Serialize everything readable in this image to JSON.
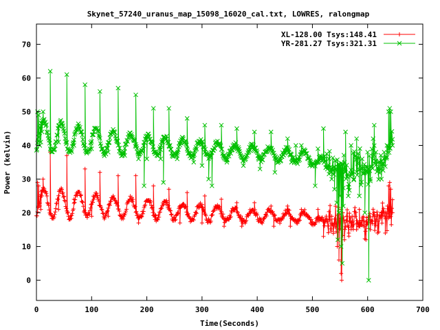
{
  "chart_data": {
    "type": "scatter",
    "title": "Skynet_57240_uranus_map_15098_16020_cal.txt, LOWRES, ralongmap",
    "xlabel": "Time(Seconds)",
    "ylabel": "Power (kelvin)",
    "xlim": [
      0,
      700
    ],
    "ylim": [
      -6,
      76
    ],
    "xticks": [
      0,
      100,
      200,
      300,
      400,
      500,
      600,
      700
    ],
    "yticks": [
      0,
      10,
      20,
      30,
      40,
      50,
      60,
      70
    ],
    "legend_position": "top-right",
    "series": [
      {
        "name": "XL-128.00 Tsys:148.41",
        "color": "#ff0000",
        "marker": "plus",
        "baseline": [
          [
            0,
            21
          ],
          [
            100,
            21
          ],
          [
            200,
            20
          ],
          [
            300,
            19
          ],
          [
            400,
            18.5
          ],
          [
            500,
            18
          ],
          [
            520,
            17
          ],
          [
            560,
            16.5
          ],
          [
            600,
            17.5
          ],
          [
            640,
            20
          ],
          [
            645,
            20
          ]
        ],
        "amplitude": [
          [
            0,
            9
          ],
          [
            60,
            8
          ],
          [
            120,
            6
          ],
          [
            200,
            5.5
          ],
          [
            300,
            4.5
          ],
          [
            400,
            3.5
          ],
          [
            500,
            3
          ],
          [
            520,
            1
          ],
          [
            640,
            1
          ]
        ],
        "period_s": 31.5,
        "points": [
          [
            2,
            29
          ],
          [
            4,
            28
          ],
          [
            6,
            22
          ],
          [
            8,
            21
          ],
          [
            10,
            25
          ],
          [
            12,
            30
          ],
          [
            25,
            38
          ],
          [
            40,
            21
          ],
          [
            55,
            37
          ],
          [
            68,
            24
          ],
          [
            88,
            33
          ],
          [
            100,
            19
          ],
          [
            115,
            32
          ],
          [
            130,
            19
          ],
          [
            148,
            31
          ],
          [
            158,
            19
          ],
          [
            180,
            31
          ],
          [
            185,
            17
          ],
          [
            212,
            28
          ],
          [
            215,
            18
          ],
          [
            240,
            27
          ],
          [
            260,
            17
          ],
          [
            273,
            26
          ],
          [
            300,
            17
          ],
          [
            305,
            25
          ],
          [
            335,
            24
          ],
          [
            340,
            16
          ],
          [
            363,
            23
          ],
          [
            372,
            16
          ],
          [
            395,
            23
          ],
          [
            425,
            22
          ],
          [
            430,
            16
          ],
          [
            455,
            22
          ],
          [
            460,
            16
          ],
          [
            480,
            21
          ],
          [
            497,
            17
          ],
          [
            510,
            21
          ],
          [
            520,
            13
          ],
          [
            535,
            19
          ],
          [
            545,
            10
          ],
          [
            548,
            6
          ],
          [
            552,
            2
          ],
          [
            553,
            0
          ],
          [
            555,
            20
          ],
          [
            558,
            12
          ],
          [
            562,
            19
          ],
          [
            566,
            14
          ],
          [
            572,
            19
          ],
          [
            580,
            15
          ],
          [
            585,
            21
          ],
          [
            592,
            19
          ],
          [
            597,
            12
          ],
          [
            605,
            15
          ],
          [
            612,
            20
          ],
          [
            618,
            14
          ],
          [
            625,
            20
          ],
          [
            632,
            14
          ],
          [
            638,
            28
          ],
          [
            640,
            29
          ],
          [
            642,
            27
          ],
          [
            645,
            20
          ]
        ]
      },
      {
        "name": "YR-281.27 Tsys:321.31",
        "color": "#00c000",
        "marker": "cross",
        "baseline": [
          [
            0,
            41
          ],
          [
            100,
            40
          ],
          [
            200,
            39
          ],
          [
            300,
            38
          ],
          [
            400,
            37
          ],
          [
            480,
            36
          ],
          [
            520,
            34
          ],
          [
            560,
            32
          ],
          [
            600,
            33
          ],
          [
            630,
            35
          ],
          [
            645,
            40
          ]
        ],
        "amplitude": [
          [
            0,
            10
          ],
          [
            80,
            8
          ],
          [
            160,
            6
          ],
          [
            260,
            5
          ],
          [
            360,
            4
          ],
          [
            480,
            3.5
          ],
          [
            520,
            3
          ],
          [
            640,
            3
          ]
        ],
        "period_s": 31.5,
        "points": [
          [
            2,
            50
          ],
          [
            4,
            49
          ],
          [
            6,
            40
          ],
          [
            8,
            41
          ],
          [
            10,
            44
          ],
          [
            12,
            50
          ],
          [
            25,
            62
          ],
          [
            40,
            41
          ],
          [
            55,
            61
          ],
          [
            68,
            40
          ],
          [
            88,
            58
          ],
          [
            100,
            39
          ],
          [
            115,
            56
          ],
          [
            130,
            38
          ],
          [
            148,
            57
          ],
          [
            160,
            37
          ],
          [
            180,
            55
          ],
          [
            185,
            36
          ],
          [
            195,
            28
          ],
          [
            200,
            36
          ],
          [
            212,
            51
          ],
          [
            225,
            36
          ],
          [
            230,
            29
          ],
          [
            240,
            51
          ],
          [
            255,
            36
          ],
          [
            273,
            48
          ],
          [
            285,
            35
          ],
          [
            300,
            34
          ],
          [
            305,
            46
          ],
          [
            312,
            30
          ],
          [
            318,
            28
          ],
          [
            335,
            46
          ],
          [
            345,
            35
          ],
          [
            363,
            45
          ],
          [
            375,
            34
          ],
          [
            395,
            44
          ],
          [
            405,
            33
          ],
          [
            425,
            44
          ],
          [
            432,
            32
          ],
          [
            455,
            42
          ],
          [
            462,
            35
          ],
          [
            470,
            40
          ],
          [
            480,
            40
          ],
          [
            495,
            34
          ],
          [
            505,
            28
          ],
          [
            510,
            39
          ],
          [
            520,
            45
          ],
          [
            530,
            36
          ],
          [
            535,
            30
          ],
          [
            540,
            27
          ],
          [
            544,
            23
          ],
          [
            546,
            12
          ],
          [
            548,
            20
          ],
          [
            550,
            25
          ],
          [
            552,
            10
          ],
          [
            554,
            5
          ],
          [
            556,
            22
          ],
          [
            558,
            35
          ],
          [
            560,
            44
          ],
          [
            565,
            25
          ],
          [
            570,
            40
          ],
          [
            575,
            30
          ],
          [
            580,
            42
          ],
          [
            585,
            25
          ],
          [
            590,
            36
          ],
          [
            595,
            20
          ],
          [
            600,
            38
          ],
          [
            602,
            0
          ],
          [
            605,
            30
          ],
          [
            610,
            42
          ],
          [
            612,
            46
          ],
          [
            615,
            38
          ],
          [
            620,
            35
          ],
          [
            625,
            30
          ],
          [
            630,
            38
          ],
          [
            635,
            40
          ],
          [
            638,
            50
          ],
          [
            640,
            51
          ],
          [
            642,
            50
          ],
          [
            645,
            40
          ]
        ]
      }
    ]
  }
}
